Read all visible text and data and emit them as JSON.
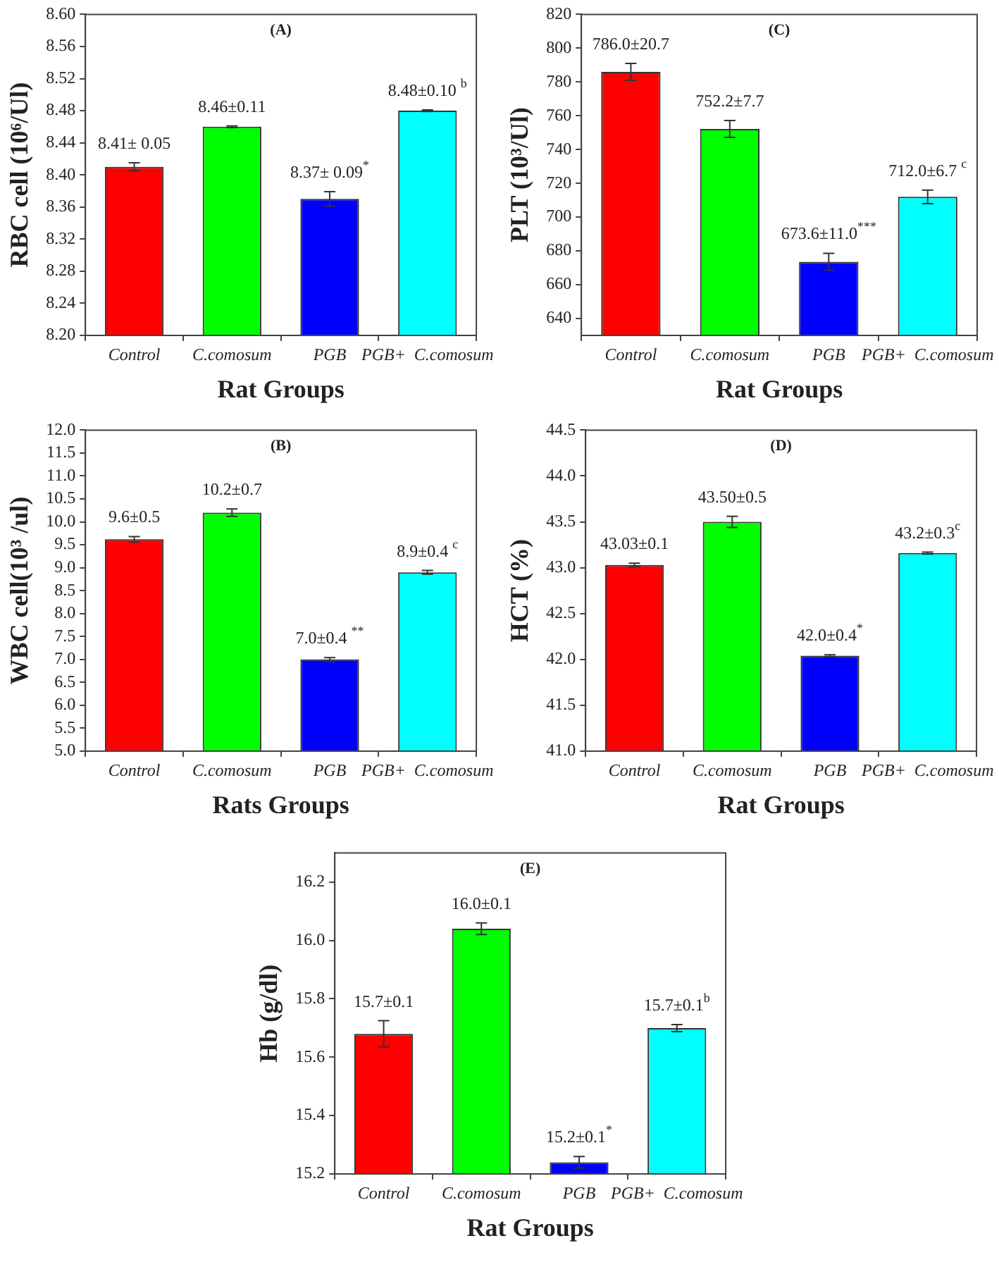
{
  "chart_data": [
    {
      "type": "bar",
      "title": "(A)",
      "xlabel": "Rat Groups",
      "ylabel": "RBC cell (10⁶/Ul)",
      "categories": [
        "Control",
        "C.comosum",
        "PGB",
        "PGB+  C.comosum"
      ],
      "values": [
        8.41,
        8.46,
        8.37,
        8.48
      ],
      "errors": [
        0.005,
        0.001,
        0.009,
        0.001
      ],
      "colors": [
        "#ff0000",
        "#00ff00",
        "#0000ff",
        "#00ffff"
      ],
      "value_labels": [
        "8.41± 0.05",
        "8.46±0.11",
        "8.37± 0.09$^{*}$",
        "8.48±0.10 $^{b}$"
      ],
      "ylim": [
        8.2,
        8.6
      ],
      "yticks": [
        {
          "value": 8.2,
          "label": "8.20"
        },
        8.24,
        8.28,
        8.32,
        8.36,
        {
          "value": 8.4,
          "label": "8.40"
        },
        8.44,
        8.48,
        8.52,
        8.56,
        {
          "value": 8.6,
          "label": "8.60"
        }
      ]
    },
    {
      "type": "bar",
      "title": "(C)",
      "xlabel": "Rat Groups",
      "ylabel": "PLT (10³/Ul)",
      "categories": [
        "Control",
        "C.comosum",
        "PGB",
        "PGB+  C.comosum"
      ],
      "values": [
        786,
        752.2,
        673.6,
        712
      ],
      "errors": [
        5,
        5,
        5,
        4
      ],
      "colors": [
        "#ff0000",
        "#00ff00",
        "#0000ff",
        "#00ffff"
      ],
      "value_labels": [
        "786.0±20.7",
        "752.2±7.7",
        "673.6±11.0$^{***}$",
        "712.0±6.7 $^{c}$"
      ],
      "ylim": [
        630,
        820
      ],
      "yticks": [
        640,
        660,
        680,
        700,
        720,
        740,
        760,
        780,
        800,
        820
      ]
    },
    {
      "type": "bar",
      "title": "(B)",
      "xlabel": "Rats Groups",
      "ylabel": "WBC cell(10³ /ul)",
      "categories": [
        "Control",
        "C.comosum",
        "PGB",
        "PGB+  C.comosum"
      ],
      "values": [
        9.62,
        10.2,
        7.0,
        8.9
      ],
      "errors": [
        0.06,
        0.08,
        0.04,
        0.04
      ],
      "colors": [
        "#ff0000",
        "#00ff00",
        "#0000ff",
        "#00ffff"
      ],
      "value_labels": [
        "9.6±0.5",
        "10.2±0.7",
        "7.0±0.4 $^{**}$",
        "8.9±0.4 $^{c}$"
      ],
      "ylim": [
        5,
        12
      ],
      "yticks": [
        {
          "value": 5,
          "label": "5.0"
        },
        5.5,
        {
          "value": 6,
          "label": "6.0"
        },
        6.5,
        {
          "value": 7,
          "label": "7.0"
        },
        7.5,
        {
          "value": 8,
          "label": "8.0"
        },
        8.5,
        {
          "value": 9,
          "label": "9.0"
        },
        9.5,
        {
          "value": 10,
          "label": "10.0"
        },
        10.5,
        {
          "value": 11,
          "label": "11.0"
        },
        11.5,
        {
          "value": 12,
          "label": "12.0"
        }
      ]
    },
    {
      "type": "bar",
      "title": "(D)",
      "xlabel": "Rat Groups",
      "ylabel": "HCT (%)",
      "categories": [
        "Control",
        "C.comosum",
        "PGB",
        "PGB+  C.comosum"
      ],
      "values": [
        43.03,
        43.5,
        42.04,
        43.16
      ],
      "errors": [
        0.02,
        0.06,
        0.01,
        0.01
      ],
      "colors": [
        "#ff0000",
        "#00ff00",
        "#0000ff",
        "#00ffff"
      ],
      "value_labels": [
        "43.03±0.1",
        "43.50±0.5",
        "42.0±0.4$^{*}$",
        "43.2±0.3$^{c}$"
      ],
      "ylim": [
        41,
        44.5
      ],
      "yticks": [
        {
          "value": 41,
          "label": "41.0"
        },
        41.5,
        {
          "value": 42,
          "label": "42.0"
        },
        42.5,
        {
          "value": 43,
          "label": "43.0"
        },
        43.5,
        {
          "value": 44,
          "label": "44.0"
        },
        44.5
      ]
    },
    {
      "type": "bar",
      "title": "(E)",
      "xlabel": "Rat Groups",
      "ylabel": "Hb (g/dl)",
      "categories": [
        "Control",
        "C.comosum",
        "PGB",
        "PGB+  C.comosum"
      ],
      "values": [
        15.68,
        16.04,
        15.24,
        15.7
      ],
      "errors": [
        0.045,
        0.02,
        0.02,
        0.012
      ],
      "colors": [
        "#ff0000",
        "#00ff00",
        "#0000ff",
        "#00ffff"
      ],
      "value_labels": [
        "15.7±0.1",
        "16.0±0.1",
        "15.2±0.1$^{*}$",
        "15.7±0.1$^{b}$"
      ],
      "ylim": [
        15.2,
        16.3
      ],
      "yticks": [
        15.2,
        15.4,
        15.6,
        15.8,
        {
          "value": 16,
          "label": "16.0"
        },
        16.2
      ]
    }
  ]
}
